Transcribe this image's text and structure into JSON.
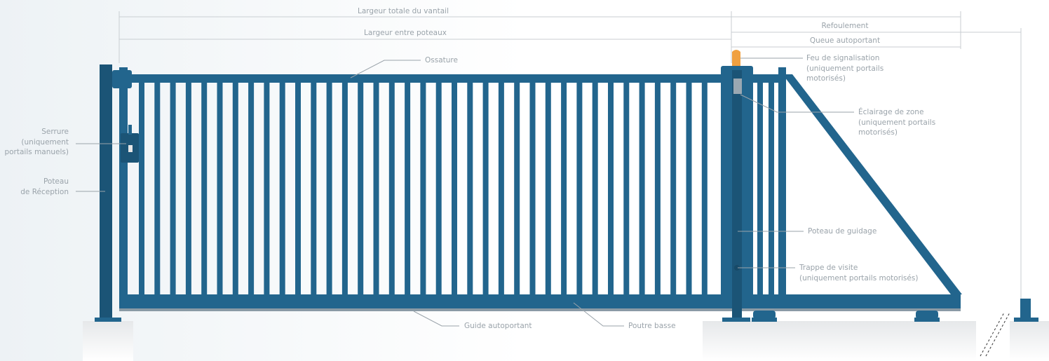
{
  "dimensions": {
    "total": "Largeur totale du vantail",
    "between_posts": "Largeur entre poteaux",
    "refoulement": "Refoulement",
    "queue": "Queue autoportant"
  },
  "labels": {
    "ossature": [
      "Ossature"
    ],
    "feu": [
      "Feu de signalisation",
      "(uniquement portails",
      "motorisés)"
    ],
    "eclairage": [
      "Éclairage de zone",
      "(uniquement portails",
      "motorisés)"
    ],
    "serrure": [
      "Serrure",
      "(uniquement",
      "portails manuels)"
    ],
    "poteau_reception": [
      "Poteau",
      "de Réception"
    ],
    "poteau_guidage": [
      "Poteau de guidage"
    ],
    "trappe": [
      "Trappe de visite",
      "(uniquement portails motorisés)"
    ],
    "guide": [
      "Guide autoportant"
    ],
    "poutre": [
      "Poutre basse"
    ]
  }
}
